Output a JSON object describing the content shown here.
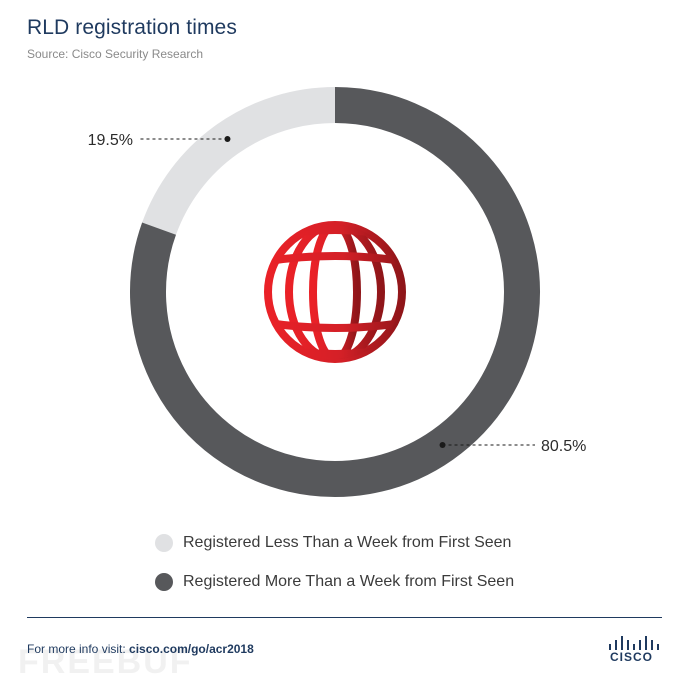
{
  "header": {
    "title": "RLD registration times",
    "source": "Source: Cisco Security Research"
  },
  "chart_data": {
    "type": "pie",
    "style": "donut",
    "title": "RLD registration times",
    "subtitle": "Source: Cisco Security Research",
    "slices": [
      {
        "label": "Registered Less Than a Week from First Seen",
        "value": 19.5,
        "display": "19.5%",
        "color": "#e0e1e3"
      },
      {
        "label": "Registered More Than a Week from First Seen",
        "value": 80.5,
        "display": "80.5%",
        "color": "#57585b"
      }
    ],
    "legend_position": "bottom",
    "center_icon": "globe-icon",
    "center_icon_color": "#d42027"
  },
  "footer": {
    "prefix": "For more info visit:",
    "link": "cisco.com/go/acr2018",
    "watermark": "FREEBUF",
    "logo_text": "CISCO"
  },
  "colors": {
    "title": "#1f3a5f",
    "divider": "#1f3a5f",
    "accent_red": "#d42027"
  }
}
